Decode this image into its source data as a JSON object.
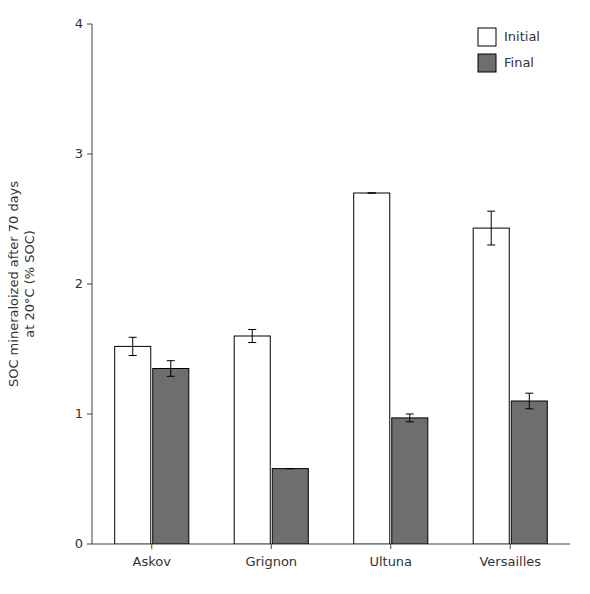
{
  "chart_data": {
    "type": "bar",
    "ylabel": "SOC mineraloized after 70 days\nat 20°C (% SOC)",
    "categories": [
      "Askov",
      "Grignon",
      "Ultuna",
      "Versailles"
    ],
    "series": [
      {
        "name": "Initial",
        "color": "#ffffff",
        "values": [
          1.52,
          1.6,
          2.7,
          2.43
        ],
        "errors": [
          0.07,
          0.05,
          0.0,
          0.13
        ]
      },
      {
        "name": "Final",
        "color": "#6e6e6e",
        "values": [
          1.35,
          0.58,
          0.97,
          1.1
        ],
        "errors": [
          0.06,
          0.0,
          0.03,
          0.06
        ]
      }
    ],
    "ylim": [
      0,
      4
    ],
    "yticks": [
      0,
      1,
      2,
      3,
      4
    ],
    "grid": false,
    "legend": "upper right"
  }
}
